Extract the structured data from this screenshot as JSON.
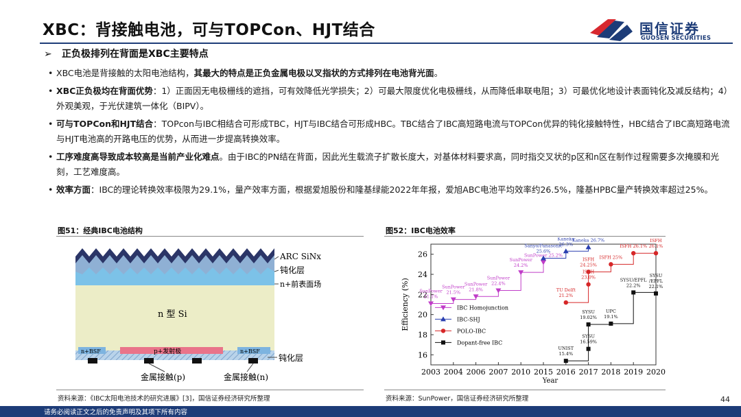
{
  "title": "XBC：背接触电池，可与TOPCon、HJT结合",
  "logo": {
    "cn": "国信证券",
    "en": "GUOSEN SECURITIES"
  },
  "subhead": "正负极排列在背面是XBC主要特点",
  "bullets": [
    {
      "pre": "XBC电池是背接触的太阳电池结构，",
      "bold": "其最大的特点是正负金属电极以叉指状的方式排列在电池背光面",
      "post": "。"
    },
    {
      "pre": "",
      "bold": "XBC正负极均在背面优势",
      "post": "：1）正面因无电极栅线的遮挡，可有效降低光学损失；2）可最大限度优化电极栅线，从而降低串联电阻；3）可最优化地设计表面钝化及减反结构；4）外观美观，于光伏建筑一体化（BIPV）。"
    },
    {
      "pre": "",
      "bold": "可与TOPCon和HJT结合",
      "post": "：TOPcon与IBC相结合可形成TBC，HJT与IBC结合可形成HBC。TBC结合了IBC高短路电流与TOPCon优异的钝化接触特性，HBC结合了IBC高短路电流与HJT电池高的开路电压的优势，从而进一步提高转换效率。"
    },
    {
      "pre": "",
      "bold": "工序难度高导致成本较高是当前产业化难点",
      "post": "。由于IBC的PN结在背面，因此光生载流子扩散长度大，对基体材料要求高，同时指交叉状的p区和n区在制作过程需要多次掩膜和光刻，工艺难度高。"
    },
    {
      "pre": "",
      "bold": "效率方面",
      "post": "：IBC的理论转换效率极限为29.1%，量产效率方面，根据爱旭股份和隆基绿能2022年年报，爱旭ABC电池平均效率约26.5%，隆基HPBC量产转换效率超过25%。"
    }
  ],
  "fig51": {
    "label": "图51：经典IBC电池结构",
    "source": "资料来源：《IBC太阳电池技术的研究进展》[3]，国信证券经济研究所整理",
    "labels": {
      "arc": "ARC SiNx",
      "passivation_top": "钝化层",
      "front_field": "n+前表面场",
      "substrate": "n 型 Si",
      "bsf_left": "n+BSF",
      "emitter": "p+发射极",
      "bsf_right": "n+BSF",
      "passivation_bottom": "钝化层",
      "contact_p": "金属接触(p)",
      "contact_n": "金属接触(n)"
    }
  },
  "fig52": {
    "label": "图52：IBC电池效率",
    "source": "资料来源：SunPower，国信证券经济研究所整理"
  },
  "page_number": "44",
  "footer": "请务必阅读正文之后的免责声明及其项下所有内容",
  "colors": {
    "brand": "#1d3c78",
    "logo_red": "#d7282f",
    "ibc_homo": "#c03cc8",
    "ibc_shj": "#2a3fb0",
    "polo": "#d62728",
    "dopant_free": "#111111"
  },
  "chart_data": {
    "type": "scatter",
    "xlabel": "Year",
    "ylabel": "Efficiency (%)",
    "xlim": [
      2003,
      2020
    ],
    "ylim": [
      15,
      27
    ],
    "xticks": [
      "2003",
      "2004",
      "2006",
      "2007",
      "2010",
      "2015",
      "2016",
      "2017",
      "2018",
      "2019",
      "2020"
    ],
    "yticks": [
      "16",
      "18",
      "20",
      "22",
      "24",
      "26"
    ],
    "legend": [
      "IBC Homojunction",
      "IBC-SHJ",
      "POLO-IBC",
      "Dopant-free IBC"
    ],
    "legend_position": "lower-left",
    "series": [
      {
        "name": "IBC Homojunction",
        "color": "#c03cc8",
        "marker": "triangle-down",
        "points": [
          {
            "x": "2003",
            "y": 21.1,
            "label": [
              "SunPower",
              "21.1%"
            ]
          },
          {
            "x": "2004",
            "y": 21.5,
            "label": [
              "SunPower",
              "21.5%"
            ]
          },
          {
            "x": "2006",
            "y": 21.8,
            "label": [
              "SunPower",
              "21.8%"
            ]
          },
          {
            "x": "2007",
            "y": 22.4,
            "label": [
              "SunPower",
              "22.4%"
            ]
          },
          {
            "x": "2010",
            "y": 24.2,
            "label": [
              "SunPower",
              "24.2%"
            ]
          },
          {
            "x": "2015",
            "y": 25.2,
            "label": [
              "SunPower 25.2%"
            ]
          }
        ]
      },
      {
        "name": "IBC-SHJ",
        "color": "#2a3fb0",
        "marker": "triangle-up",
        "points": [
          {
            "x": "2015",
            "y": 25.6,
            "label": [
              "Sanyo/Panasonic",
              "25.6%"
            ]
          },
          {
            "x": "2016",
            "y": 26.3,
            "label": [
              "Kaneka",
              "26.3%"
            ]
          },
          {
            "x": "2017",
            "y": 26.7,
            "label": [
              "Kaneka 26.7%"
            ]
          }
        ]
      },
      {
        "name": "POLO-IBC",
        "color": "#d62728",
        "marker": "circle",
        "points": [
          {
            "x": "2016",
            "y": 21.2,
            "label": [
              "TU Delft",
              "21.2%"
            ]
          },
          {
            "x": "2017",
            "y": 23.0,
            "label": [
              "ISFH",
              "23.0%"
            ]
          },
          {
            "x": "2017",
            "y": 24.25,
            "label": [
              "ISFH",
              "24.25%"
            ]
          },
          {
            "x": "2018",
            "y": 25.0,
            "label": [
              "ISFH 25%"
            ]
          },
          {
            "x": "2019",
            "y": 26.1,
            "label": [
              "ISFH 26.1%"
            ]
          },
          {
            "x": "2020",
            "y": 26.1,
            "label": [
              "ISFH",
              "26.1%"
            ]
          }
        ]
      },
      {
        "name": "Dopant-free IBC",
        "color": "#111111",
        "marker": "square",
        "points": [
          {
            "x": "2016",
            "y": 15.4,
            "label": [
              "UNIST",
              "15.4%"
            ]
          },
          {
            "x": "2017",
            "y": 16.59,
            "label": [
              "SYSU",
              "16.59%"
            ]
          },
          {
            "x": "2017",
            "y": 19.02,
            "label": [
              "SYSU",
              "19.02%"
            ]
          },
          {
            "x": "2018",
            "y": 19.1,
            "label": [
              "UPC",
              "19.1%"
            ]
          },
          {
            "x": "2019",
            "y": 22.2,
            "label": [
              "SYSU/EPFL",
              "22.2%"
            ]
          },
          {
            "x": "2020",
            "y": 22.1,
            "label": [
              "SYSU",
              "/EPFL",
              "22.1%"
            ]
          }
        ]
      }
    ]
  }
}
